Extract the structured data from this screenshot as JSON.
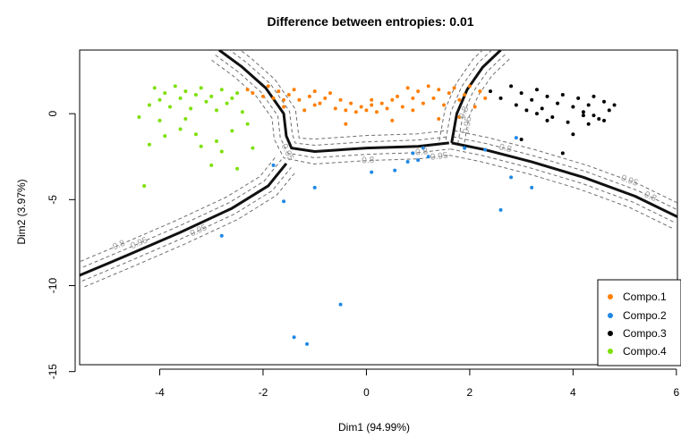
{
  "chart_data": {
    "type": "scatter",
    "title": "Difference between entropies: 0.01",
    "xlabel": "Dim1 (94.99%)",
    "ylabel": "Dim2 (3.97%)",
    "xlim": [
      -5.55,
      6.02
    ],
    "ylim": [
      -14.6,
      3.7
    ],
    "x_ticks": [
      {
        "value": -4,
        "label": "-4"
      },
      {
        "value": -2,
        "label": "-2"
      },
      {
        "value": 0,
        "label": "0"
      },
      {
        "value": 2,
        "label": "2"
      },
      {
        "value": 4,
        "label": "4"
      },
      {
        "value": 6,
        "label": "6"
      }
    ],
    "y_ticks": [
      {
        "value": 0,
        "label": "0"
      },
      {
        "value": -5,
        "label": "-5"
      },
      {
        "value": -10,
        "label": "-10"
      },
      {
        "value": -15,
        "label": "-15"
      }
    ],
    "legend_position": "bottom-right",
    "colors": {
      "Compo.1": "#FF7F00",
      "Compo.2": "#1E88E5",
      "Compo.3": "#000000",
      "Compo.4": "#7CE000",
      "boundary": "#111111",
      "contour": "#6f6f6f",
      "contour_label": "#9a9a9a"
    },
    "series": [
      {
        "name": "Compo.1",
        "color": "#FF7F00",
        "points": [
          [
            -2.3,
            1.4
          ],
          [
            -2.2,
            1.2
          ],
          [
            -2.0,
            1.0
          ],
          [
            -1.9,
            1.6
          ],
          [
            -1.8,
            0.9
          ],
          [
            -1.7,
            1.3
          ],
          [
            -1.6,
            0.4
          ],
          [
            -1.5,
            1.1
          ],
          [
            -1.4,
            1.4
          ],
          [
            -1.3,
            0.8
          ],
          [
            -1.2,
            0.2
          ],
          [
            -1.1,
            1.0
          ],
          [
            -1.0,
            1.3
          ],
          [
            -0.9,
            0.6
          ],
          [
            -0.8,
            0.9
          ],
          [
            -0.7,
            1.2
          ],
          [
            -0.6,
            0.3
          ],
          [
            -0.5,
            0.8
          ],
          [
            -0.4,
            0.2
          ],
          [
            -0.3,
            0.6
          ],
          [
            -0.2,
            0.1
          ],
          [
            -0.1,
            0.4
          ],
          [
            0.0,
            0.2
          ],
          [
            0.1,
            0.5
          ],
          [
            0.2,
            0.1
          ],
          [
            0.3,
            0.6
          ],
          [
            0.4,
            0.3
          ],
          [
            0.5,
            0.8
          ],
          [
            0.6,
            1.0
          ],
          [
            0.7,
            0.4
          ],
          [
            0.8,
            1.5
          ],
          [
            0.9,
            0.9
          ],
          [
            1.0,
            1.3
          ],
          [
            1.1,
            0.6
          ],
          [
            1.2,
            1.6
          ],
          [
            1.3,
            0.9
          ],
          [
            1.4,
            1.4
          ],
          [
            1.5,
            0.5
          ],
          [
            1.6,
            1.2
          ],
          [
            1.7,
            1.5
          ],
          [
            1.8,
            0.8
          ],
          [
            1.9,
            1.1
          ],
          [
            2.0,
            1.6
          ],
          [
            2.1,
            0.4
          ],
          [
            2.2,
            1.3
          ],
          [
            2.3,
            0.9
          ],
          [
            -1.6,
            0.8
          ],
          [
            -0.4,
            -0.6
          ],
          [
            0.5,
            -0.4
          ],
          [
            1.4,
            -0.3
          ],
          [
            1.8,
            -0.2
          ],
          [
            -1.0,
            0.5
          ],
          [
            0.1,
            0.8
          ],
          [
            0.9,
            0.2
          ]
        ]
      },
      {
        "name": "Compo.2",
        "color": "#1E88E5",
        "points": [
          [
            -2.8,
            -7.1
          ],
          [
            -1.8,
            -3.0
          ],
          [
            -1.6,
            -5.1
          ],
          [
            -1.0,
            -4.3
          ],
          [
            -1.4,
            -13.0
          ],
          [
            -1.15,
            -13.4
          ],
          [
            -0.5,
            -11.1
          ],
          [
            0.1,
            -3.4
          ],
          [
            0.55,
            -3.3
          ],
          [
            0.8,
            -2.8
          ],
          [
            0.9,
            -2.3
          ],
          [
            1.0,
            -2.7
          ],
          [
            1.1,
            -2.0
          ],
          [
            1.2,
            -2.5
          ],
          [
            1.9,
            -2.0
          ],
          [
            2.3,
            -2.1
          ],
          [
            2.6,
            -5.6
          ],
          [
            2.8,
            -3.7
          ],
          [
            2.9,
            -1.4
          ],
          [
            3.2,
            -4.3
          ]
        ]
      },
      {
        "name": "Compo.3",
        "color": "#000000",
        "points": [
          [
            2.4,
            1.3
          ],
          [
            2.6,
            0.9
          ],
          [
            2.8,
            1.6
          ],
          [
            2.9,
            0.5
          ],
          [
            3.0,
            1.2
          ],
          [
            3.1,
            0.2
          ],
          [
            3.2,
            0.8
          ],
          [
            3.3,
            1.4
          ],
          [
            3.4,
            0.3
          ],
          [
            3.5,
            1.0
          ],
          [
            3.6,
            -0.2
          ],
          [
            3.7,
            0.6
          ],
          [
            3.8,
            1.1
          ],
          [
            3.9,
            -0.5
          ],
          [
            4.0,
            0.4
          ],
          [
            4.1,
            0.9
          ],
          [
            4.2,
            -0.1
          ],
          [
            4.3,
            0.5
          ],
          [
            4.4,
            1.0
          ],
          [
            4.5,
            -0.3
          ],
          [
            4.6,
            0.7
          ],
          [
            4.7,
            0.2
          ],
          [
            4.8,
            0.5
          ],
          [
            3.8,
            -2.3
          ],
          [
            4.0,
            -1.2
          ],
          [
            3.0,
            -1.5
          ],
          [
            4.3,
            -0.6
          ],
          [
            4.6,
            -0.4
          ],
          [
            3.5,
            -0.4
          ],
          [
            4.2,
            0.1
          ],
          [
            3.3,
            0.0
          ],
          [
            4.4,
            -0.1
          ]
        ]
      },
      {
        "name": "Compo.4",
        "color": "#7CE000",
        "points": [
          [
            -4.4,
            -0.2
          ],
          [
            -4.2,
            0.5
          ],
          [
            -4.1,
            1.5
          ],
          [
            -4.0,
            0.8
          ],
          [
            -3.9,
            1.2
          ],
          [
            -3.8,
            0.4
          ],
          [
            -3.7,
            1.6
          ],
          [
            -3.6,
            0.9
          ],
          [
            -3.5,
            1.3
          ],
          [
            -3.4,
            0.3
          ],
          [
            -3.3,
            1.1
          ],
          [
            -3.2,
            1.5
          ],
          [
            -3.1,
            0.7
          ],
          [
            -3.0,
            1.0
          ],
          [
            -2.9,
            0.2
          ],
          [
            -2.8,
            1.4
          ],
          [
            -2.7,
            0.6
          ],
          [
            -2.6,
            0.9
          ],
          [
            -2.5,
            1.2
          ],
          [
            -2.4,
            0.1
          ],
          [
            -4.0,
            -0.4
          ],
          [
            -3.6,
            -0.9
          ],
          [
            -3.3,
            -1.2
          ],
          [
            -2.9,
            -1.6
          ],
          [
            -2.6,
            -1.0
          ],
          [
            -2.3,
            -0.6
          ],
          [
            -4.3,
            -4.2
          ],
          [
            -3.9,
            -1.3
          ],
          [
            -3.2,
            -1.9
          ],
          [
            -2.8,
            -2.2
          ],
          [
            -3.0,
            -3.0
          ],
          [
            -2.2,
            -2.0
          ],
          [
            -4.2,
            -1.8
          ],
          [
            -3.5,
            -0.3
          ],
          [
            -2.5,
            -3.2
          ]
        ]
      }
    ],
    "boundaries": [
      [
        [
          -5.55,
          -9.4
        ],
        [
          -4.6,
          -8.2
        ],
        [
          -3.6,
          -6.9
        ],
        [
          -2.6,
          -5.5
        ],
        [
          -1.9,
          -4.2
        ],
        [
          -1.55,
          -2.9
        ]
      ],
      [
        [
          -2.85,
          3.7
        ],
        [
          -2.4,
          2.7
        ],
        [
          -1.95,
          1.5
        ],
        [
          -1.6,
          0.0
        ],
        [
          -1.55,
          -1.3
        ],
        [
          -1.45,
          -2.0
        ],
        [
          -1.0,
          -2.2
        ],
        [
          0.0,
          -2.0
        ],
        [
          1.0,
          -1.9
        ],
        [
          1.6,
          -1.7
        ]
      ],
      [
        [
          2.6,
          3.7
        ],
        [
          2.25,
          2.7
        ],
        [
          1.95,
          1.4
        ],
        [
          1.75,
          0.0
        ],
        [
          1.65,
          -1.7
        ]
      ],
      [
        [
          1.65,
          -1.7
        ],
        [
          2.3,
          -2.1
        ],
        [
          3.2,
          -2.8
        ],
        [
          4.2,
          -3.7
        ],
        [
          5.2,
          -4.8
        ],
        [
          6.02,
          -6.0
        ]
      ]
    ],
    "contour_labels": [
      "0.95",
      "0.8",
      "0.95",
      "0.8",
      "0.8",
      "0.95",
      "0.8",
      "0.95",
      "0.8",
      "0.95",
      "0.8",
      "0.95"
    ]
  }
}
